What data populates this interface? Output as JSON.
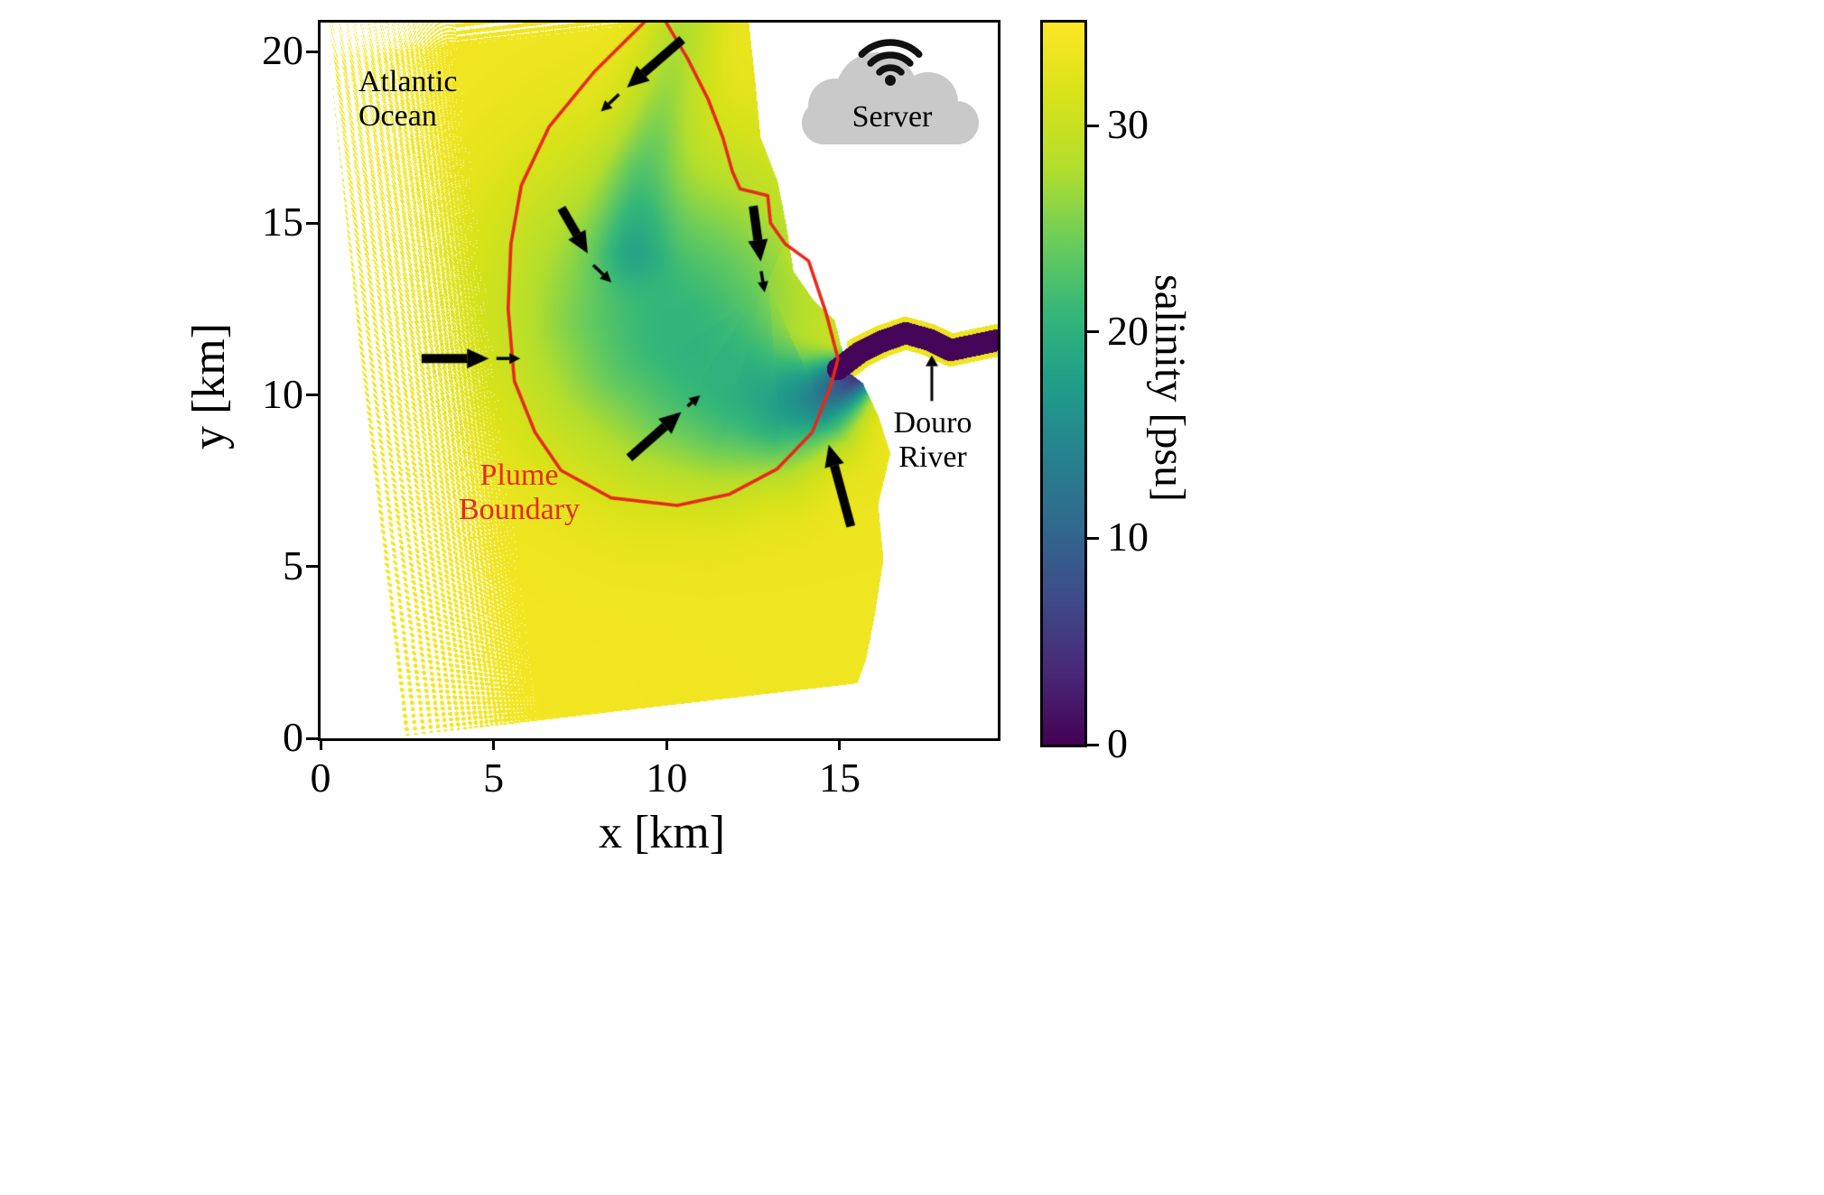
{
  "annotations": {
    "atlantic_ocean": "Atlantic\nOcean",
    "plume_boundary": "Plume\nBoundary",
    "douro_river": "Douro\nRiver",
    "server": "Server"
  },
  "style": {
    "boundary_color": "#e8291c",
    "arrow_color": "#000000",
    "cloud_color": "#c9c9c9",
    "axis_color": "#000000",
    "background": "#ffffff"
  },
  "chart_data": {
    "type": "heatmap",
    "title": "",
    "xlabel": "x [km]",
    "ylabel": "y [km]",
    "xlim": [
      0,
      19.57
    ],
    "ylim": [
      0,
      20.84
    ],
    "xticks": [
      0,
      5,
      10,
      15
    ],
    "yticks": [
      0,
      5,
      10,
      15,
      20
    ],
    "grid": false,
    "colorbar": {
      "label": "salinity [psu]",
      "ticks": [
        0,
        10,
        20,
        30
      ],
      "vmin": 0,
      "vmax": 35,
      "colormap": "viridis",
      "viridis_stops": [
        [
          0.0,
          [
            68,
            1,
            84
          ]
        ],
        [
          0.1,
          [
            72,
            40,
            120
          ]
        ],
        [
          0.2,
          [
            62,
            74,
            137
          ]
        ],
        [
          0.3,
          [
            49,
            104,
            142
          ]
        ],
        [
          0.4,
          [
            38,
            130,
            142
          ]
        ],
        [
          0.5,
          [
            31,
            158,
            137
          ]
        ],
        [
          0.6,
          [
            53,
            183,
            121
          ]
        ],
        [
          0.7,
          [
            109,
            205,
            89
          ]
        ],
        [
          0.8,
          [
            180,
            222,
            44
          ]
        ],
        [
          0.9,
          [
            216,
            226,
            25
          ]
        ],
        [
          1.0,
          [
            253,
            231,
            37
          ]
        ]
      ]
    },
    "field_model": {
      "base_salinity": 34.2,
      "plume_center": [
        10.2,
        12.6
      ],
      "plume_radii": [
        4.9,
        4.6
      ],
      "plume_amplitude": 11,
      "jet_path": [
        [
          15.45,
          10.55
        ],
        [
          14.4,
          9.85
        ],
        [
          13.2,
          9.55
        ],
        [
          11.9,
          9.7
        ],
        [
          10.8,
          10.15
        ],
        [
          9.9,
          11.05
        ],
        [
          9.35,
          12.3
        ],
        [
          9.05,
          14.0
        ]
      ],
      "jet_amplitude": 27,
      "jet_decay_km": 3.0,
      "jet_width0": 0.45,
      "jet_spread": 0.33,
      "streak_path": [
        [
          9.0,
          14.3
        ],
        [
          9.3,
          16.5
        ],
        [
          9.9,
          18.5
        ],
        [
          10.5,
          20.9
        ]
      ],
      "streak_amplitude": 5.5,
      "streak_width": 0.72,
      "river_path": [
        [
          14.95,
          10.75
        ],
        [
          15.6,
          11.25
        ],
        [
          16.2,
          11.55
        ],
        [
          16.9,
          11.8
        ],
        [
          17.6,
          11.6
        ],
        [
          18.2,
          11.3
        ],
        [
          18.9,
          11.45
        ],
        [
          19.6,
          11.6
        ]
      ],
      "river_halfwidth": 0.32,
      "river_salinity": 0.3,
      "bank_salinity": 33.5
    },
    "domain_polygon": [
      [
        2.3,
        0.05
      ],
      [
        15.5,
        1.6
      ],
      [
        15.75,
        2.3
      ],
      [
        16.0,
        3.6
      ],
      [
        16.25,
        5.2
      ],
      [
        16.1,
        6.8
      ],
      [
        16.45,
        8.3
      ],
      [
        16.1,
        9.4
      ],
      [
        15.65,
        10.35
      ],
      [
        15.25,
        10.65
      ],
      [
        15.05,
        11.35
      ],
      [
        14.85,
        12.15
      ],
      [
        14.2,
        12.8
      ],
      [
        13.65,
        13.6
      ],
      [
        13.45,
        14.9
      ],
      [
        13.2,
        16.2
      ],
      [
        12.7,
        17.5
      ],
      [
        12.55,
        19.1
      ],
      [
        12.35,
        20.95
      ],
      [
        0.12,
        20.95
      ],
      [
        2.3,
        0.05
      ]
    ],
    "plume_boundary_path": [
      [
        9.4,
        20.9
      ],
      [
        7.9,
        19.4
      ],
      [
        6.6,
        17.8
      ],
      [
        5.8,
        16.1
      ],
      [
        5.5,
        14.4
      ],
      [
        5.42,
        12.5
      ],
      [
        5.6,
        10.4
      ],
      [
        6.2,
        8.9
      ],
      [
        6.95,
        7.8
      ],
      [
        8.4,
        7.0
      ],
      [
        10.3,
        6.78
      ],
      [
        11.8,
        7.1
      ],
      [
        13.2,
        7.85
      ],
      [
        14.2,
        8.9
      ],
      [
        14.72,
        10.2
      ],
      [
        14.95,
        11.05
      ],
      [
        14.6,
        12.4
      ],
      [
        14.1,
        13.9
      ],
      [
        13.42,
        14.4
      ],
      [
        13.0,
        15.0
      ],
      [
        12.92,
        15.8
      ],
      [
        12.12,
        16.0
      ],
      [
        11.9,
        16.5
      ],
      [
        11.62,
        17.5
      ],
      [
        11.2,
        18.6
      ],
      [
        10.6,
        19.8
      ],
      [
        9.95,
        20.9
      ]
    ],
    "arrows_thick": [
      [
        10.45,
        20.35,
        8.85,
        18.95
      ],
      [
        6.96,
        15.44,
        7.72,
        14.12
      ],
      [
        12.5,
        15.5,
        12.72,
        13.88
      ],
      [
        2.92,
        11.06,
        4.86,
        11.06
      ],
      [
        8.92,
        8.17,
        10.42,
        9.5
      ],
      [
        15.32,
        6.17,
        14.68,
        8.55
      ]
    ],
    "arrows_small": [
      [
        8.62,
        18.75,
        8.1,
        18.25
      ],
      [
        7.88,
        13.78,
        8.4,
        13.28
      ],
      [
        12.73,
        13.6,
        12.83,
        12.98
      ],
      [
        5.08,
        11.06,
        5.77,
        11.06
      ],
      [
        10.6,
        9.67,
        10.97,
        9.99
      ]
    ],
    "river_label_arrow": [
      17.66,
      9.82,
      17.66,
      11.15
    ]
  }
}
